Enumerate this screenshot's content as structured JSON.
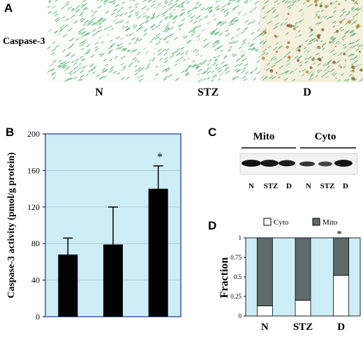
{
  "panelA": {
    "letter": "A",
    "row_label": "Caspase-3",
    "conditions": [
      "N",
      "STZ",
      "D"
    ]
  },
  "panelB": {
    "letter": "B",
    "asterisk": "*"
  },
  "panelC": {
    "letter": "C",
    "group_labels": [
      "Mito",
      "Cyto"
    ],
    "lane_labels": [
      "N",
      "STZ",
      "D",
      "N",
      "STZ",
      "D"
    ]
  },
  "panelD": {
    "letter": "D",
    "asterisk": "*"
  },
  "chart_data": [
    {
      "type": "bar",
      "panel": "B",
      "categories": [
        "",
        "",
        ""
      ],
      "values": [
        68,
        79,
        140
      ],
      "errors": [
        18,
        41,
        25
      ],
      "ylabel": "Caspase-3 activity (pmol/g protein)",
      "ylim": [
        0,
        200
      ],
      "yticks": [
        "0",
        "40",
        "80",
        "120",
        "160",
        "200"
      ],
      "background": "#cdeef6",
      "bar_color": "#000000"
    },
    {
      "type": "bar",
      "stacked": true,
      "panel": "D",
      "categories": [
        "N",
        "STZ",
        "D"
      ],
      "series": [
        {
          "name": "Cyto",
          "values": [
            0.13,
            0.2,
            0.52
          ],
          "color": "#ffffff"
        },
        {
          "name": "Mito",
          "values": [
            0.87,
            0.8,
            0.48
          ],
          "color": "#5f6b6b"
        }
      ],
      "ylabel": "Fraction",
      "ylim": [
        0,
        1
      ],
      "yticks": [
        "0",
        "0.25",
        "0.5",
        "0.75",
        "1"
      ],
      "legend": "top",
      "background": "#cdeef6"
    }
  ]
}
